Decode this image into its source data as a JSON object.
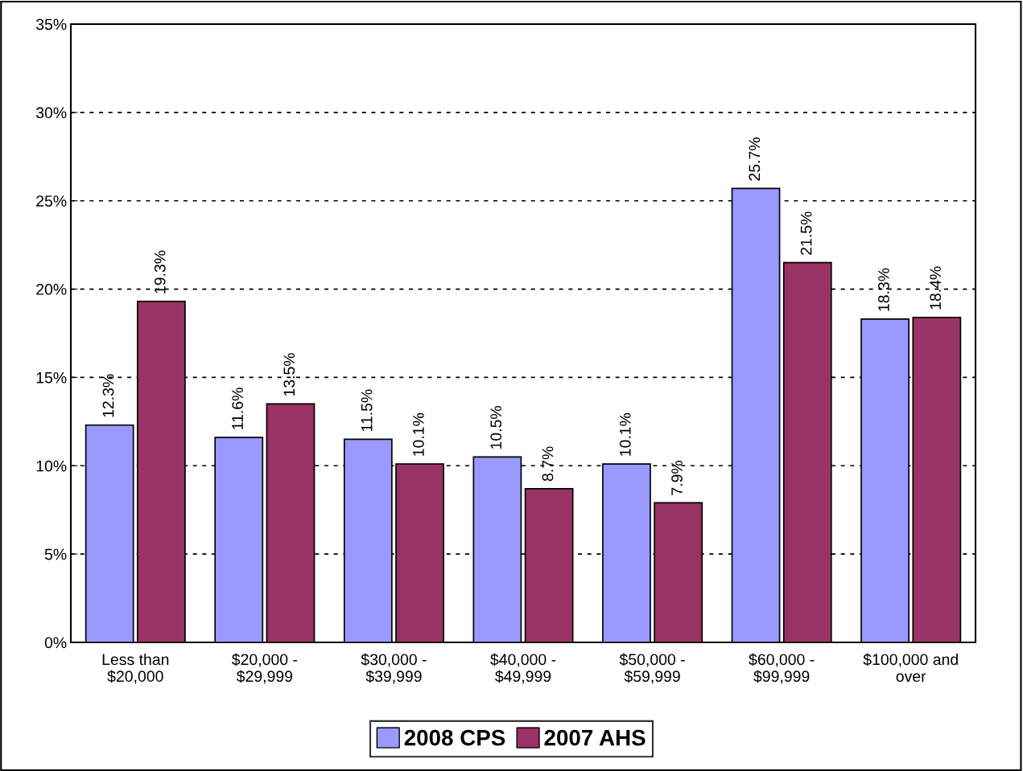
{
  "chart_data": {
    "type": "bar",
    "categories": [
      "Less than\n$20,000",
      "$20,000 -\n$29,999",
      "$30,000 -\n$39,999",
      "$40,000 -\n$49,999",
      "$50,000 -\n$59,999",
      "$60,000 -\n$99,999",
      "$100,000 and\nover"
    ],
    "series": [
      {
        "name": "2008 CPS",
        "color": "#9999ff",
        "values": [
          12.3,
          11.6,
          11.5,
          10.5,
          10.1,
          25.7,
          18.3
        ],
        "value_labels": [
          "12.3%",
          "11.6%",
          "11.5%",
          "10.5%",
          "10.1%",
          "25.7%",
          "18.3%"
        ]
      },
      {
        "name": "2007 AHS",
        "color": "#993366",
        "values": [
          19.3,
          13.5,
          10.1,
          8.7,
          7.9,
          21.5,
          18.4
        ],
        "value_labels": [
          "19.3%",
          "13.5%",
          "10.1%",
          "8.7%",
          "7.9%",
          "21.5%",
          "18.4%"
        ]
      }
    ],
    "ylim": [
      0,
      35
    ],
    "yticks": [
      {
        "value": 0,
        "label": "0%"
      },
      {
        "value": 5,
        "label": "5%"
      },
      {
        "value": 10,
        "label": "10%"
      },
      {
        "value": 15,
        "label": "15%"
      },
      {
        "value": 20,
        "label": "20%"
      },
      {
        "value": 25,
        "label": "25%"
      },
      {
        "value": 30,
        "label": "30%"
      },
      {
        "value": 35,
        "label": "35%"
      }
    ],
    "grid": "y",
    "line_style": "dashed",
    "legend": "bottom"
  }
}
